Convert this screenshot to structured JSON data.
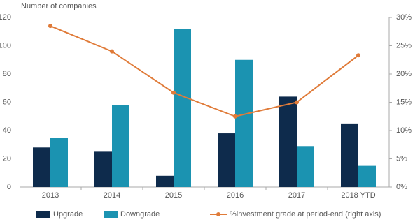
{
  "chart_data": {
    "type": "bar",
    "y_axis_label": "Number of companies",
    "categories": [
      "2013",
      "2014",
      "2015",
      "2016",
      "2017",
      "2018 YTD"
    ],
    "series": [
      {
        "name": "Upgrade",
        "color": "#0e2b4c",
        "values": [
          28,
          25,
          8,
          38,
          64,
          45
        ]
      },
      {
        "name": "Downgrade",
        "color": "#1b93b1",
        "values": [
          35,
          58,
          112,
          90,
          29,
          15
        ]
      },
      {
        "name": "%investment grade at period-end (right axis)",
        "type": "line",
        "axis": "y2",
        "color": "#e07b39",
        "values": [
          28.5,
          24,
          16.7,
          12.5,
          15,
          23.3
        ]
      }
    ],
    "ylim": [
      0,
      120
    ],
    "yticks": [
      0,
      20,
      40,
      60,
      80,
      100,
      120
    ],
    "y2lim": [
      0,
      30
    ],
    "y2ticks": [
      {
        "value": 0,
        "label": "0%"
      },
      {
        "value": 5,
        "label": "5%"
      },
      {
        "value": 10,
        "label": "10%"
      },
      {
        "value": 15,
        "label": "15%"
      },
      {
        "value": 20,
        "label": "20%"
      },
      {
        "value": 25,
        "label": "25%"
      },
      {
        "value": 30,
        "label": "30%"
      }
    ],
    "grid": false
  }
}
